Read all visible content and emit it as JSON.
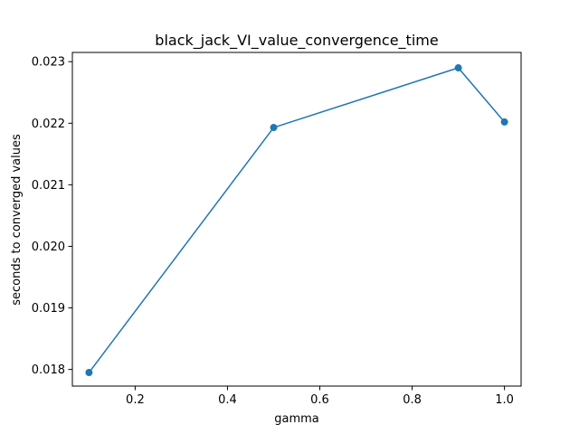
{
  "chart_data": {
    "type": "line",
    "title": "black_jack_VI_value_convergence_time",
    "xlabel": "gamma",
    "ylabel": "seconds to converged values",
    "xlim": [
      0.064,
      1.036
    ],
    "ylim": [
      0.01773,
      0.02315
    ],
    "x_ticks": [
      0.2,
      0.4,
      0.6,
      0.8,
      1.0
    ],
    "x_tick_labels": [
      "0.2",
      "0.4",
      "0.6",
      "0.8",
      "1.0"
    ],
    "y_ticks": [
      0.018,
      0.019,
      0.02,
      0.021,
      0.022,
      0.023
    ],
    "y_tick_labels": [
      "0.018",
      "0.019",
      "0.020",
      "0.021",
      "0.022",
      "0.023"
    ],
    "grid": false,
    "legend": false,
    "series": [
      {
        "x": [
          0.1,
          0.5,
          0.9,
          1.0
        ],
        "y": [
          0.01795,
          0.02193,
          0.0229,
          0.02202
        ],
        "color": "#1f77b4",
        "marker": "circle"
      }
    ]
  }
}
